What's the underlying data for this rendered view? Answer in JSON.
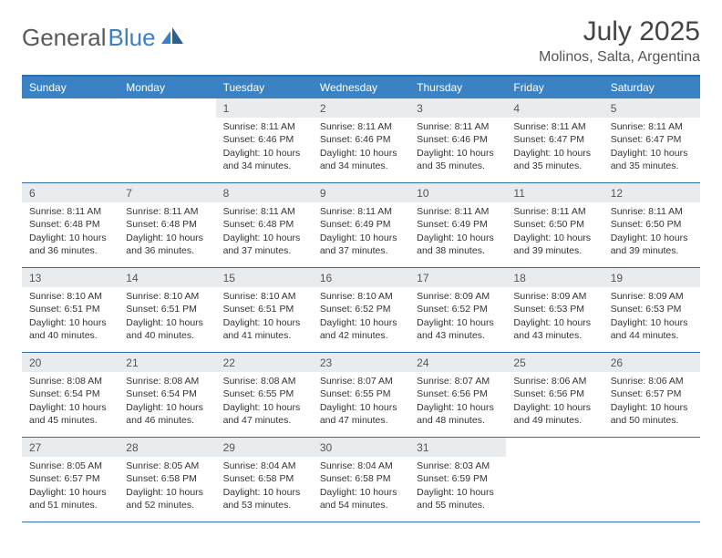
{
  "logo": {
    "text_gray": "General",
    "text_blue": "Blue"
  },
  "title": "July 2025",
  "location": "Molinos, Salta, Argentina",
  "colors": {
    "header_bg": "#3b82c4",
    "border": "#2f6fb0",
    "daynum_bg": "#e9ecef",
    "text": "#333333",
    "logo_gray": "#5a5a5a",
    "logo_blue": "#3b7fc4"
  },
  "day_names": [
    "Sunday",
    "Monday",
    "Tuesday",
    "Wednesday",
    "Thursday",
    "Friday",
    "Saturday"
  ],
  "weeks": [
    [
      {
        "empty": true
      },
      {
        "empty": true
      },
      {
        "n": "1",
        "sr": "Sunrise: 8:11 AM",
        "ss": "Sunset: 6:46 PM",
        "dl": "Daylight: 10 hours and 34 minutes."
      },
      {
        "n": "2",
        "sr": "Sunrise: 8:11 AM",
        "ss": "Sunset: 6:46 PM",
        "dl": "Daylight: 10 hours and 34 minutes."
      },
      {
        "n": "3",
        "sr": "Sunrise: 8:11 AM",
        "ss": "Sunset: 6:46 PM",
        "dl": "Daylight: 10 hours and 35 minutes."
      },
      {
        "n": "4",
        "sr": "Sunrise: 8:11 AM",
        "ss": "Sunset: 6:47 PM",
        "dl": "Daylight: 10 hours and 35 minutes."
      },
      {
        "n": "5",
        "sr": "Sunrise: 8:11 AM",
        "ss": "Sunset: 6:47 PM",
        "dl": "Daylight: 10 hours and 35 minutes."
      }
    ],
    [
      {
        "n": "6",
        "sr": "Sunrise: 8:11 AM",
        "ss": "Sunset: 6:48 PM",
        "dl": "Daylight: 10 hours and 36 minutes."
      },
      {
        "n": "7",
        "sr": "Sunrise: 8:11 AM",
        "ss": "Sunset: 6:48 PM",
        "dl": "Daylight: 10 hours and 36 minutes."
      },
      {
        "n": "8",
        "sr": "Sunrise: 8:11 AM",
        "ss": "Sunset: 6:48 PM",
        "dl": "Daylight: 10 hours and 37 minutes."
      },
      {
        "n": "9",
        "sr": "Sunrise: 8:11 AM",
        "ss": "Sunset: 6:49 PM",
        "dl": "Daylight: 10 hours and 37 minutes."
      },
      {
        "n": "10",
        "sr": "Sunrise: 8:11 AM",
        "ss": "Sunset: 6:49 PM",
        "dl": "Daylight: 10 hours and 38 minutes."
      },
      {
        "n": "11",
        "sr": "Sunrise: 8:11 AM",
        "ss": "Sunset: 6:50 PM",
        "dl": "Daylight: 10 hours and 39 minutes."
      },
      {
        "n": "12",
        "sr": "Sunrise: 8:11 AM",
        "ss": "Sunset: 6:50 PM",
        "dl": "Daylight: 10 hours and 39 minutes."
      }
    ],
    [
      {
        "n": "13",
        "sr": "Sunrise: 8:10 AM",
        "ss": "Sunset: 6:51 PM",
        "dl": "Daylight: 10 hours and 40 minutes."
      },
      {
        "n": "14",
        "sr": "Sunrise: 8:10 AM",
        "ss": "Sunset: 6:51 PM",
        "dl": "Daylight: 10 hours and 40 minutes."
      },
      {
        "n": "15",
        "sr": "Sunrise: 8:10 AM",
        "ss": "Sunset: 6:51 PM",
        "dl": "Daylight: 10 hours and 41 minutes."
      },
      {
        "n": "16",
        "sr": "Sunrise: 8:10 AM",
        "ss": "Sunset: 6:52 PM",
        "dl": "Daylight: 10 hours and 42 minutes."
      },
      {
        "n": "17",
        "sr": "Sunrise: 8:09 AM",
        "ss": "Sunset: 6:52 PM",
        "dl": "Daylight: 10 hours and 43 minutes."
      },
      {
        "n": "18",
        "sr": "Sunrise: 8:09 AM",
        "ss": "Sunset: 6:53 PM",
        "dl": "Daylight: 10 hours and 43 minutes."
      },
      {
        "n": "19",
        "sr": "Sunrise: 8:09 AM",
        "ss": "Sunset: 6:53 PM",
        "dl": "Daylight: 10 hours and 44 minutes."
      }
    ],
    [
      {
        "n": "20",
        "sr": "Sunrise: 8:08 AM",
        "ss": "Sunset: 6:54 PM",
        "dl": "Daylight: 10 hours and 45 minutes."
      },
      {
        "n": "21",
        "sr": "Sunrise: 8:08 AM",
        "ss": "Sunset: 6:54 PM",
        "dl": "Daylight: 10 hours and 46 minutes."
      },
      {
        "n": "22",
        "sr": "Sunrise: 8:08 AM",
        "ss": "Sunset: 6:55 PM",
        "dl": "Daylight: 10 hours and 47 minutes."
      },
      {
        "n": "23",
        "sr": "Sunrise: 8:07 AM",
        "ss": "Sunset: 6:55 PM",
        "dl": "Daylight: 10 hours and 47 minutes."
      },
      {
        "n": "24",
        "sr": "Sunrise: 8:07 AM",
        "ss": "Sunset: 6:56 PM",
        "dl": "Daylight: 10 hours and 48 minutes."
      },
      {
        "n": "25",
        "sr": "Sunrise: 8:06 AM",
        "ss": "Sunset: 6:56 PM",
        "dl": "Daylight: 10 hours and 49 minutes."
      },
      {
        "n": "26",
        "sr": "Sunrise: 8:06 AM",
        "ss": "Sunset: 6:57 PM",
        "dl": "Daylight: 10 hours and 50 minutes."
      }
    ],
    [
      {
        "n": "27",
        "sr": "Sunrise: 8:05 AM",
        "ss": "Sunset: 6:57 PM",
        "dl": "Daylight: 10 hours and 51 minutes."
      },
      {
        "n": "28",
        "sr": "Sunrise: 8:05 AM",
        "ss": "Sunset: 6:58 PM",
        "dl": "Daylight: 10 hours and 52 minutes."
      },
      {
        "n": "29",
        "sr": "Sunrise: 8:04 AM",
        "ss": "Sunset: 6:58 PM",
        "dl": "Daylight: 10 hours and 53 minutes."
      },
      {
        "n": "30",
        "sr": "Sunrise: 8:04 AM",
        "ss": "Sunset: 6:58 PM",
        "dl": "Daylight: 10 hours and 54 minutes."
      },
      {
        "n": "31",
        "sr": "Sunrise: 8:03 AM",
        "ss": "Sunset: 6:59 PM",
        "dl": "Daylight: 10 hours and 55 minutes."
      },
      {
        "empty": true
      },
      {
        "empty": true
      }
    ]
  ]
}
